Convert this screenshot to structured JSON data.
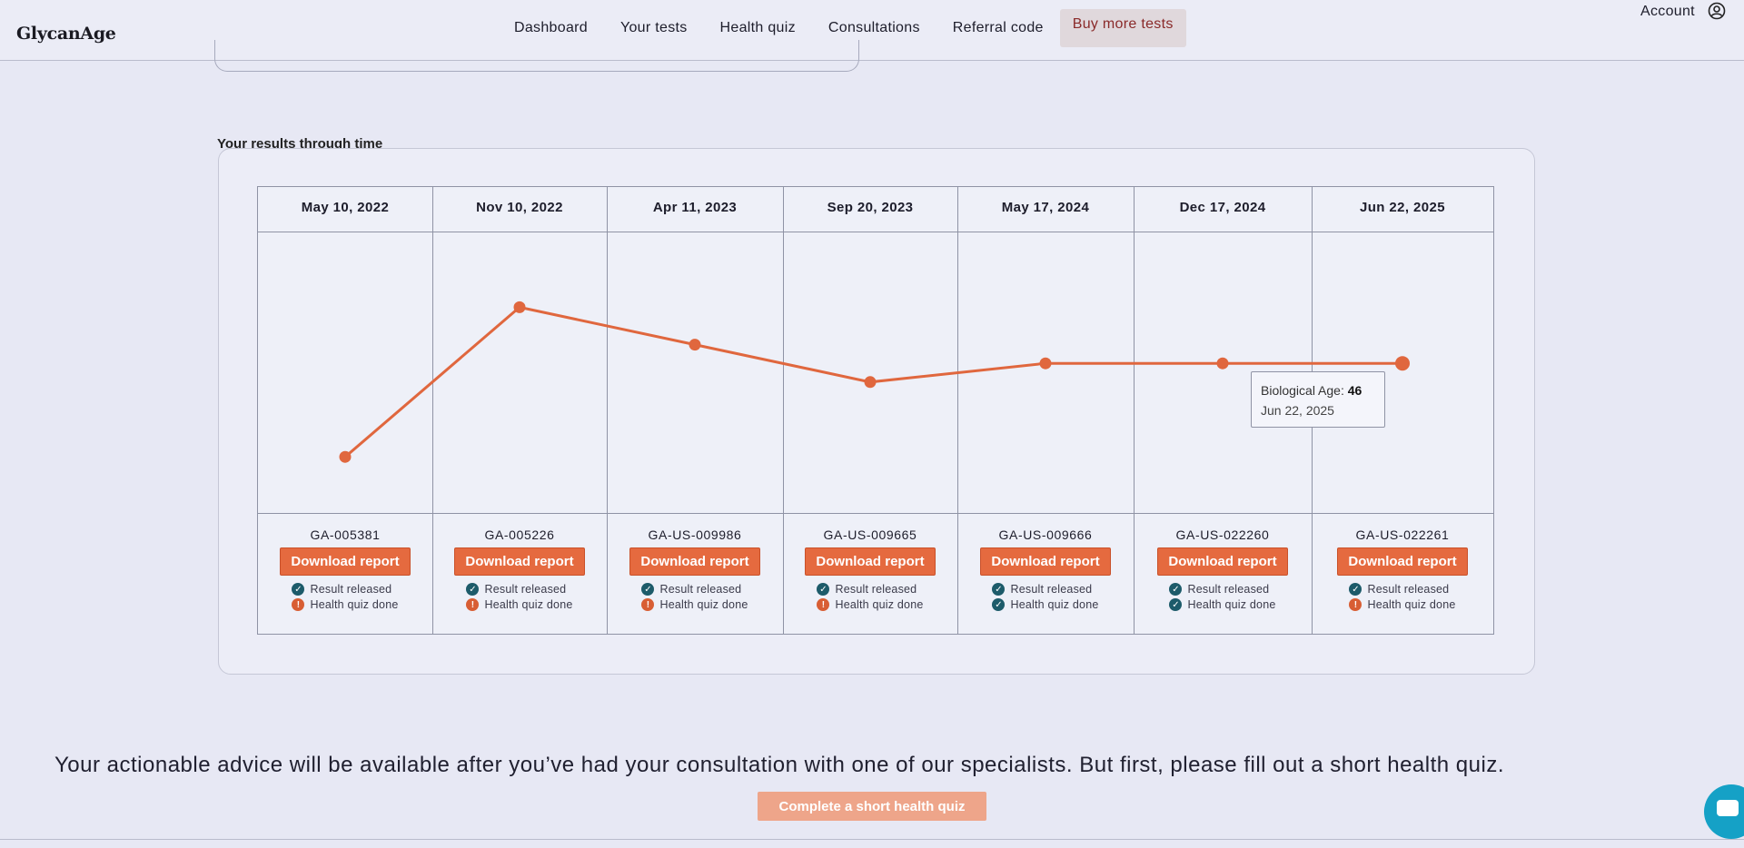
{
  "brand": {
    "logo": "GlycanAge"
  },
  "nav": {
    "items": [
      {
        "label": "Dashboard"
      },
      {
        "label": "Your tests"
      },
      {
        "label": "Health quiz"
      },
      {
        "label": "Consultations"
      },
      {
        "label": "Referral code"
      },
      {
        "label": "Buy more tests"
      }
    ],
    "account_label": "Account"
  },
  "results": {
    "title": "Your results through time",
    "tooltip": {
      "label": "Biological Age:",
      "value": "46",
      "date": "Jun 22, 2025"
    },
    "download_label": "Download report",
    "status_result_label": "Result released",
    "status_quiz_label": "Health quiz done",
    "columns": [
      {
        "date": "May 10, 2022",
        "test_id": "GA-005381",
        "result_released": true,
        "quiz_done": false
      },
      {
        "date": "Nov 10, 2022",
        "test_id": "GA-005226",
        "result_released": true,
        "quiz_done": false
      },
      {
        "date": "Apr 11, 2023",
        "test_id": "GA-US-009986",
        "result_released": true,
        "quiz_done": false
      },
      {
        "date": "Sep 20, 2023",
        "test_id": "GA-US-009665",
        "result_released": true,
        "quiz_done": false
      },
      {
        "date": "May 17, 2024",
        "test_id": "GA-US-009666",
        "result_released": true,
        "quiz_done": true
      },
      {
        "date": "Dec 17, 2024",
        "test_id": "GA-US-022260",
        "result_released": true,
        "quiz_done": true
      },
      {
        "date": "Jun 22, 2025",
        "test_id": "GA-US-022261",
        "result_released": true,
        "quiz_done": false
      }
    ]
  },
  "chart_data": {
    "type": "line",
    "categories": [
      "May 10, 2022",
      "Nov 10, 2022",
      "Apr 11, 2023",
      "Sep 20, 2023",
      "May 17, 2024",
      "Dec 17, 2024",
      "Jun 22, 2025"
    ],
    "series": [
      {
        "name": "Biological Age",
        "values": [
          36,
          52,
          48,
          44,
          46,
          46,
          46
        ],
        "color": "#e0673e"
      }
    ],
    "ylim": [
      30,
      60
    ],
    "grid": false,
    "highlight_index": 6
  },
  "footer": {
    "advice": "Your actionable advice will be available after you’ve had your consultation with one of our specialists. But first, please fill out a short health quiz.",
    "quiz_button": "Complete a short health quiz"
  },
  "colors": {
    "accent": "#e56a3f",
    "ok_badge": "#1d5b6a",
    "warn_badge": "#d85e34",
    "chat": "#15a1c6"
  }
}
